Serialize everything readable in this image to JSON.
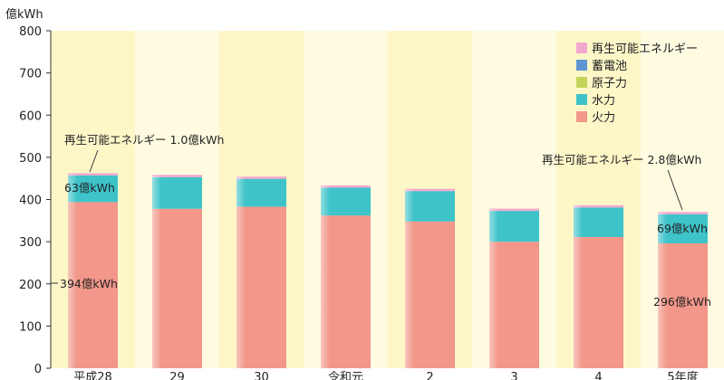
{
  "chart_data": {
    "type": "bar",
    "stacked": true,
    "y_unit": "億kWh",
    "ylim": [
      0,
      800
    ],
    "y_ticks": [
      "0",
      "100",
      "200",
      "300",
      "400",
      "500",
      "600",
      "700",
      "800"
    ],
    "categories": [
      "平成28",
      "29",
      "30",
      "令和元",
      "2",
      "3",
      "4",
      "5年度"
    ],
    "series": [
      {
        "name": "火力",
        "color": "#f2978a",
        "values": [
          394,
          378,
          383,
          362,
          348,
          300,
          311,
          296
        ]
      },
      {
        "name": "水力",
        "color": "#3ec3c9",
        "values": [
          63,
          75,
          66,
          66,
          72,
          73,
          70,
          69
        ]
      },
      {
        "name": "原子力",
        "color": "#c5d35a",
        "values": [
          0,
          0,
          0,
          0,
          0,
          0,
          0,
          0
        ]
      },
      {
        "name": "蓄電池",
        "color": "#5f95d2",
        "values": [
          0,
          0,
          0,
          0,
          0,
          0,
          0,
          0
        ]
      },
      {
        "name": "再生可能エネルギー",
        "color": "#f2a9cf",
        "values": [
          1.0,
          2,
          3,
          3,
          2,
          2,
          3,
          2.8
        ]
      }
    ],
    "legend_position": "top-right",
    "legend_order": [
      "再生可能エネルギー",
      "蓄電池",
      "原子力",
      "水力",
      "火力"
    ],
    "background": "#fdf7c8",
    "annotations": {
      "first": {
        "renewable": "再生可能エネルギー 1.0億kWh",
        "hydro": "63億kWh",
        "thermal": "394億kWh"
      },
      "last": {
        "renewable": "再生可能エネルギー 2.8億kWh",
        "hydro": "69億kWh",
        "thermal": "296億kWh"
      }
    }
  }
}
